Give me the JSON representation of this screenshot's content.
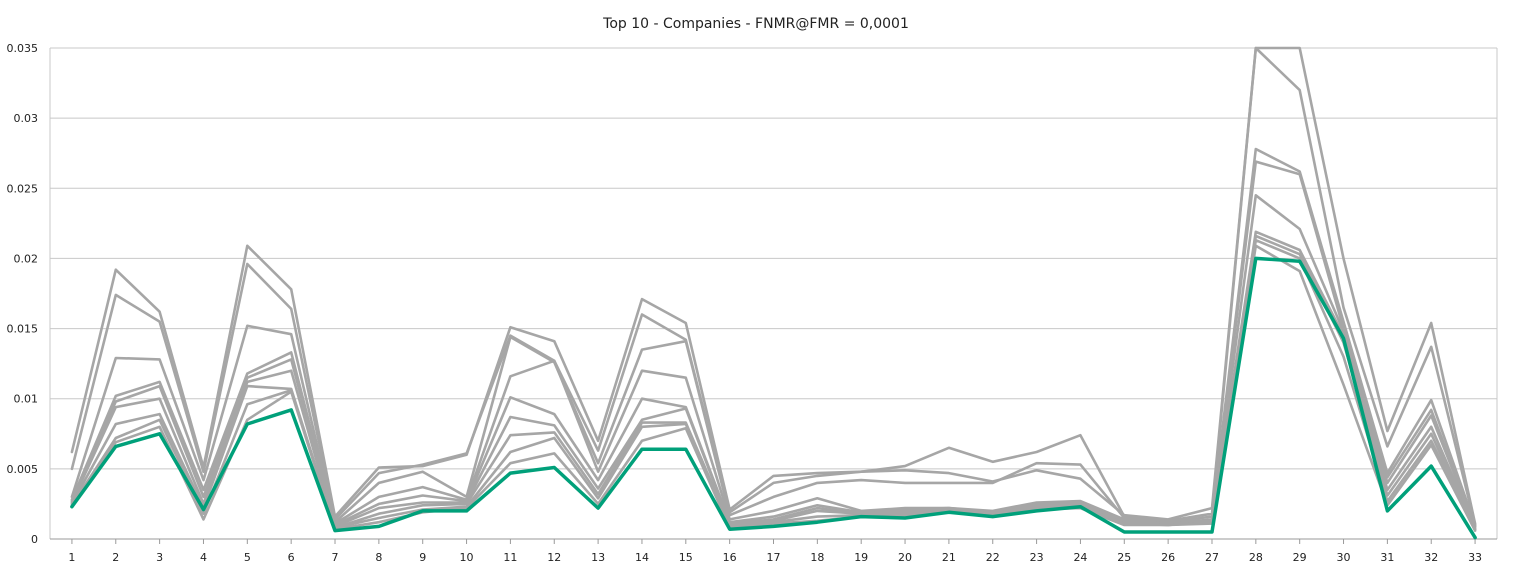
{
  "chart_data": {
    "type": "line",
    "title": "Top 10 - Companies - FNMR@FMR = 0,0001",
    "xlabel": "",
    "ylabel": "",
    "x": [
      1,
      2,
      3,
      4,
      5,
      6,
      7,
      8,
      9,
      10,
      11,
      12,
      13,
      14,
      15,
      16,
      17,
      18,
      19,
      20,
      21,
      22,
      23,
      24,
      25,
      26,
      27,
      28,
      29,
      30,
      31,
      32,
      33
    ],
    "ylim": [
      0,
      0.035
    ],
    "yticks": [
      0,
      0.005,
      0.01,
      0.015,
      0.02,
      0.025,
      0.03,
      0.035
    ],
    "ytick_labels": [
      "0",
      "0.005",
      "0.01",
      "0.015",
      "0.02",
      "0.025",
      "0.03",
      "0.035"
    ],
    "grid": true,
    "legend": "none",
    "colors": {
      "gray_series": "#a6a6a6",
      "highlight_series": "#00a07a",
      "grid": "#c8c8c8",
      "axis": "#9a9a9a"
    },
    "series": [
      {
        "values": [
          0.0062,
          0.0192,
          0.0162,
          0.0051,
          0.0209,
          0.0178,
          0.0016,
          0.0051,
          0.0052,
          0.006,
          0.0151,
          0.0141,
          0.007,
          0.0171,
          0.0154,
          0.0021,
          0.0045,
          0.0047,
          0.0048,
          0.0049,
          0.0047,
          0.0041,
          0.0049,
          0.0043,
          0.0017,
          0.0014,
          0.0022,
          0.036,
          0.036,
          0.02,
          0.0077,
          0.0154,
          0.0011
        ],
        "highlight": false
      },
      {
        "values": [
          0.005,
          0.0174,
          0.0155,
          0.0048,
          0.0196,
          0.0164,
          0.0014,
          0.0047,
          0.0053,
          0.0061,
          0.0145,
          0.0127,
          0.0063,
          0.016,
          0.0142,
          0.0019,
          0.004,
          0.0045,
          0.0048,
          0.0052,
          0.0065,
          0.0055,
          0.0062,
          0.0074,
          0.0016,
          0.0013,
          0.0018,
          0.036,
          0.032,
          0.0165,
          0.0066,
          0.0137,
          0.001
        ],
        "highlight": false
      },
      {
        "values": [
          0.003,
          0.0129,
          0.0128,
          0.0042,
          0.0152,
          0.0146,
          0.0012,
          0.004,
          0.0048,
          0.003,
          0.0144,
          0.0126,
          0.0054,
          0.0135,
          0.0141,
          0.0017,
          0.003,
          0.004,
          0.0042,
          0.004,
          0.004,
          0.004,
          0.0054,
          0.0053,
          0.0015,
          0.0012,
          0.0016,
          0.0278,
          0.0262,
          0.0155,
          0.0047,
          0.0099,
          0.001
        ],
        "highlight": false
      },
      {
        "values": [
          0.0028,
          0.0102,
          0.0112,
          0.0035,
          0.0118,
          0.0133,
          0.0011,
          0.003,
          0.0037,
          0.0028,
          0.0116,
          0.0127,
          0.0048,
          0.012,
          0.0115,
          0.0014,
          0.002,
          0.0029,
          0.002,
          0.0022,
          0.0022,
          0.002,
          0.0026,
          0.0027,
          0.0014,
          0.0011,
          0.0014,
          0.0269,
          0.026,
          0.015,
          0.0044,
          0.0092,
          0.0009
        ],
        "highlight": false
      },
      {
        "values": [
          0.0027,
          0.0098,
          0.0109,
          0.003,
          0.0115,
          0.0128,
          0.001,
          0.0025,
          0.0031,
          0.0027,
          0.0101,
          0.0089,
          0.0042,
          0.01,
          0.0094,
          0.0012,
          0.0016,
          0.0024,
          0.0019,
          0.0021,
          0.0022,
          0.0019,
          0.0025,
          0.0026,
          0.0013,
          0.0011,
          0.0013,
          0.0245,
          0.0221,
          0.0148,
          0.004,
          0.0088,
          0.0009
        ],
        "highlight": false
      },
      {
        "values": [
          0.0026,
          0.0094,
          0.01,
          0.0025,
          0.0112,
          0.012,
          0.0009,
          0.0022,
          0.0026,
          0.0026,
          0.0087,
          0.0081,
          0.0036,
          0.0085,
          0.0093,
          0.0011,
          0.0014,
          0.0022,
          0.0018,
          0.002,
          0.0021,
          0.0018,
          0.0024,
          0.0025,
          0.0012,
          0.0011,
          0.0013,
          0.0219,
          0.0206,
          0.0145,
          0.0035,
          0.008,
          0.0008
        ],
        "highlight": false
      },
      {
        "values": [
          0.0025,
          0.0082,
          0.0089,
          0.0022,
          0.0109,
          0.0107,
          0.0008,
          0.0018,
          0.0024,
          0.0025,
          0.0074,
          0.0076,
          0.0032,
          0.0083,
          0.0083,
          0.001,
          0.0013,
          0.002,
          0.0018,
          0.0019,
          0.002,
          0.0018,
          0.0023,
          0.0024,
          0.0011,
          0.001,
          0.0012,
          0.0216,
          0.0203,
          0.014,
          0.0031,
          0.0075,
          0.0007
        ],
        "highlight": false
      },
      {
        "values": [
          0.0024,
          0.0072,
          0.0085,
          0.0018,
          0.0096,
          0.0106,
          0.0008,
          0.0015,
          0.0021,
          0.0023,
          0.0062,
          0.0072,
          0.0029,
          0.008,
          0.0082,
          0.0009,
          0.0012,
          0.0016,
          0.0017,
          0.0018,
          0.002,
          0.0017,
          0.0022,
          0.0023,
          0.0011,
          0.001,
          0.0012,
          0.0213,
          0.02,
          0.013,
          0.0027,
          0.007,
          0.0007
        ],
        "highlight": false
      },
      {
        "values": [
          0.0023,
          0.0069,
          0.008,
          0.0014,
          0.0085,
          0.0105,
          0.0007,
          0.0012,
          0.0019,
          0.0022,
          0.0054,
          0.0061,
          0.0025,
          0.007,
          0.0079,
          0.0008,
          0.0011,
          0.0013,
          0.0016,
          0.0017,
          0.0019,
          0.0017,
          0.0021,
          0.0022,
          0.001,
          0.001,
          0.0011,
          0.0209,
          0.0191,
          0.011,
          0.0024,
          0.0067,
          0.0006
        ],
        "highlight": false
      },
      {
        "values": [
          0.0023,
          0.0066,
          0.0075,
          0.0021,
          0.0082,
          0.0092,
          0.0006,
          0.0009,
          0.002,
          0.002,
          0.0047,
          0.0051,
          0.0022,
          0.0064,
          0.0064,
          0.0007,
          0.0009,
          0.0012,
          0.0016,
          0.0015,
          0.0019,
          0.0016,
          0.002,
          0.0023,
          0.0005,
          0.0005,
          0.0005,
          0.02,
          0.0198,
          0.0143,
          0.002,
          0.0052,
          0.0001
        ],
        "highlight": true
      }
    ]
  }
}
